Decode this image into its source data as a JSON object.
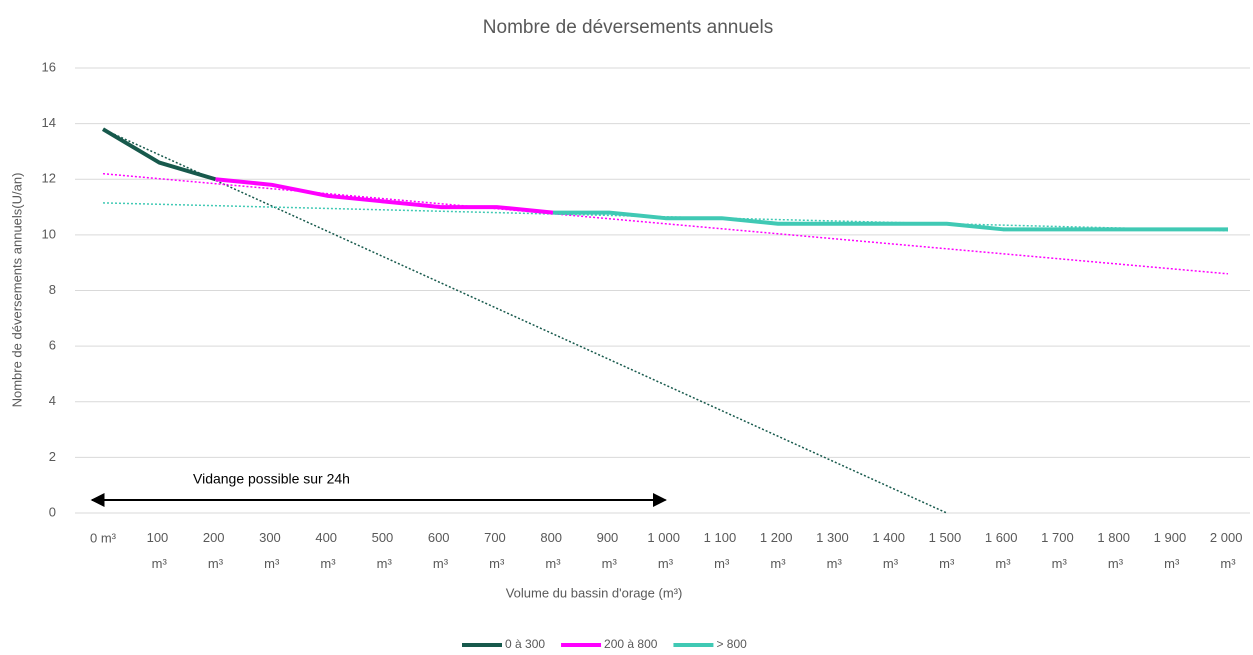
{
  "chart_data": {
    "type": "line",
    "title": "Nombre de déversements annuels",
    "x_label": "Volume du bassin d'orage (m³)",
    "y_label": "Nombre de déversements annuels(U/an)",
    "categories": [
      "0 m³",
      "100 m³",
      "200 m³",
      "300 m³",
      "400 m³",
      "500 m³",
      "600 m³",
      "700 m³",
      "800 m³",
      "900 m³",
      "1 000 m³",
      "1 100 m³",
      "1 200 m³",
      "1 300 m³",
      "1 400 m³",
      "1 500 m³",
      "1 600 m³",
      "1 700 m³",
      "1 800 m³",
      "1 900 m³",
      "2 000 m³"
    ],
    "series": [
      {
        "name": "0 à 300",
        "color": "#17594c",
        "values": [
          13.8,
          12.6,
          12.0,
          null,
          null,
          null,
          null,
          null,
          null,
          null,
          null,
          null,
          null,
          null,
          null,
          null,
          null,
          null,
          null,
          null,
          null
        ]
      },
      {
        "name": "200 à 800",
        "color": "#ff00ff",
        "values": [
          null,
          null,
          12.0,
          11.8,
          11.4,
          11.2,
          11.0,
          11.0,
          10.8,
          null,
          null,
          null,
          null,
          null,
          null,
          null,
          null,
          null,
          null,
          null,
          null
        ]
      },
      {
        "name": "> 800",
        "color": "#40c9b4",
        "values": [
          null,
          null,
          null,
          null,
          null,
          null,
          null,
          null,
          10.8,
          10.8,
          10.6,
          10.6,
          10.4,
          10.4,
          10.4,
          10.4,
          10.2,
          10.2,
          10.2,
          10.2,
          10.2
        ]
      }
    ],
    "trendlines": [
      {
        "color": "#17594c",
        "values": [
          13.8,
          12.88,
          11.96,
          11.04,
          10.12,
          9.2,
          8.28,
          7.36,
          6.44,
          5.52,
          4.6,
          3.68,
          2.76,
          1.84,
          0.92,
          0,
          null,
          null,
          null,
          null,
          null
        ]
      },
      {
        "color": "#ff00ff",
        "values": [
          12.2,
          12.02,
          11.84,
          11.66,
          11.48,
          11.3,
          11.12,
          10.94,
          10.76,
          10.58,
          10.4,
          10.22,
          10.04,
          9.86,
          9.68,
          9.5,
          9.32,
          9.14,
          8.96,
          8.78,
          8.6
        ]
      },
      {
        "color": "#40c9b4",
        "values": [
          11.15,
          11.1,
          11.05,
          11.0,
          10.95,
          10.9,
          10.85,
          10.8,
          10.75,
          10.7,
          10.65,
          10.6,
          10.55,
          10.5,
          10.45,
          10.4,
          10.35,
          10.3,
          10.25,
          10.2,
          10.15
        ]
      }
    ],
    "annotation": "Vidange possible sur 24h",
    "ylim": [
      0,
      16
    ],
    "yticks": [
      0,
      2,
      4,
      6,
      8,
      10,
      12,
      14,
      16
    ],
    "grid": true,
    "legend": "bottom"
  }
}
